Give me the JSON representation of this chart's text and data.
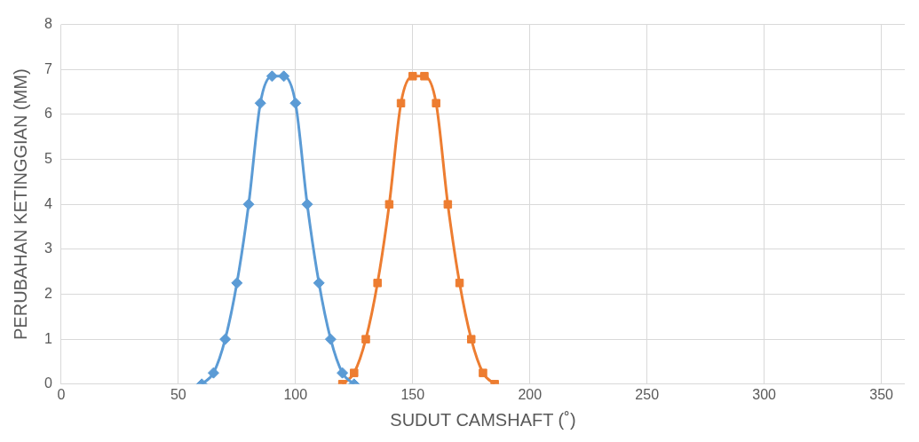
{
  "chart_data": {
    "type": "line",
    "xlabel": "SUDUT CAMSHAFT (˚)",
    "ylabel": "PERUBAHAN KETINGGIAN (MM)",
    "xlim": [
      0,
      360
    ],
    "xticks": [
      0,
      50,
      100,
      150,
      200,
      250,
      300,
      350
    ],
    "ylim": [
      0,
      8
    ],
    "yticks": [
      0,
      1,
      2,
      3,
      4,
      5,
      6,
      7,
      8
    ],
    "grid": true,
    "legend": false,
    "series": [
      {
        "color": "#5b9bd5",
        "marker": "diamond",
        "x": [
          60,
          65,
          70,
          75,
          80,
          85,
          90,
          95,
          100,
          105,
          110,
          115,
          120,
          125
        ],
        "values": [
          0,
          0.25,
          1,
          2.25,
          4,
          6.25,
          6.85,
          6.85,
          6.25,
          4,
          2.25,
          1,
          0.25,
          0
        ]
      },
      {
        "color": "#ed7d31",
        "marker": "square",
        "x": [
          120,
          125,
          130,
          135,
          140,
          145,
          150,
          155,
          160,
          165,
          170,
          175,
          180,
          185
        ],
        "values": [
          0,
          0.25,
          1,
          2.25,
          4,
          6.25,
          6.85,
          6.85,
          6.25,
          4,
          2.25,
          1,
          0.25,
          0
        ]
      }
    ]
  }
}
